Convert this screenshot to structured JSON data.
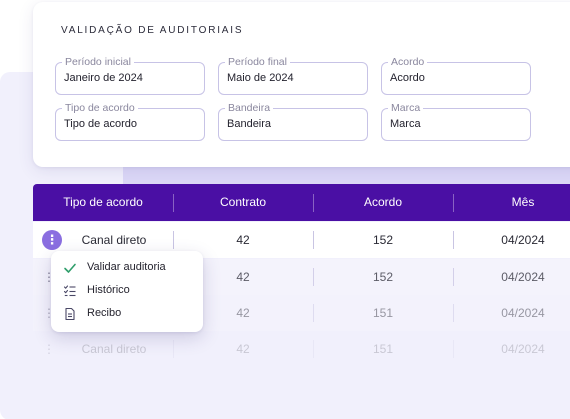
{
  "filters": {
    "title": "VALIDAÇÃO DE AUDITORIAIS",
    "fields": [
      {
        "label": "Período inicial",
        "value": "Janeiro de 2024"
      },
      {
        "label": "Período final",
        "value": "Maio de 2024"
      },
      {
        "label": "Acordo",
        "value": "Acordo"
      },
      {
        "label": "Tipo de acordo",
        "value": "Tipo de acordo"
      },
      {
        "label": "Bandeira",
        "value": "Bandeira"
      },
      {
        "label": "Marca",
        "value": "Marca"
      }
    ]
  },
  "table": {
    "headers": [
      "Tipo de acordo",
      "Contrato",
      "Acordo",
      "Mês"
    ],
    "rows": [
      {
        "tipo": "Canal direto",
        "contrato": "42",
        "acordo": "152",
        "mes": "04/2024"
      },
      {
        "tipo": "",
        "contrato": "42",
        "acordo": "152",
        "mes": "04/2024"
      },
      {
        "tipo": "",
        "contrato": "42",
        "acordo": "151",
        "mes": "04/2024"
      },
      {
        "tipo": "Canal direto",
        "contrato": "42",
        "acordo": "151",
        "mes": "04/2024"
      }
    ],
    "row_action_glyph": "⋮"
  },
  "row_menu": {
    "items": [
      {
        "label": "Validar auditoria",
        "icon": "check-icon"
      },
      {
        "label": "Histórico",
        "icon": "checklist-icon"
      },
      {
        "label": "Recibo",
        "icon": "receipt-icon"
      }
    ]
  },
  "colors": {
    "header_bg": "#4a0fa4",
    "accent": "#8a6ee0",
    "check": "#2f9e6b",
    "field_border": "#c7c3e6",
    "page_bg": "#f1f0fc"
  }
}
